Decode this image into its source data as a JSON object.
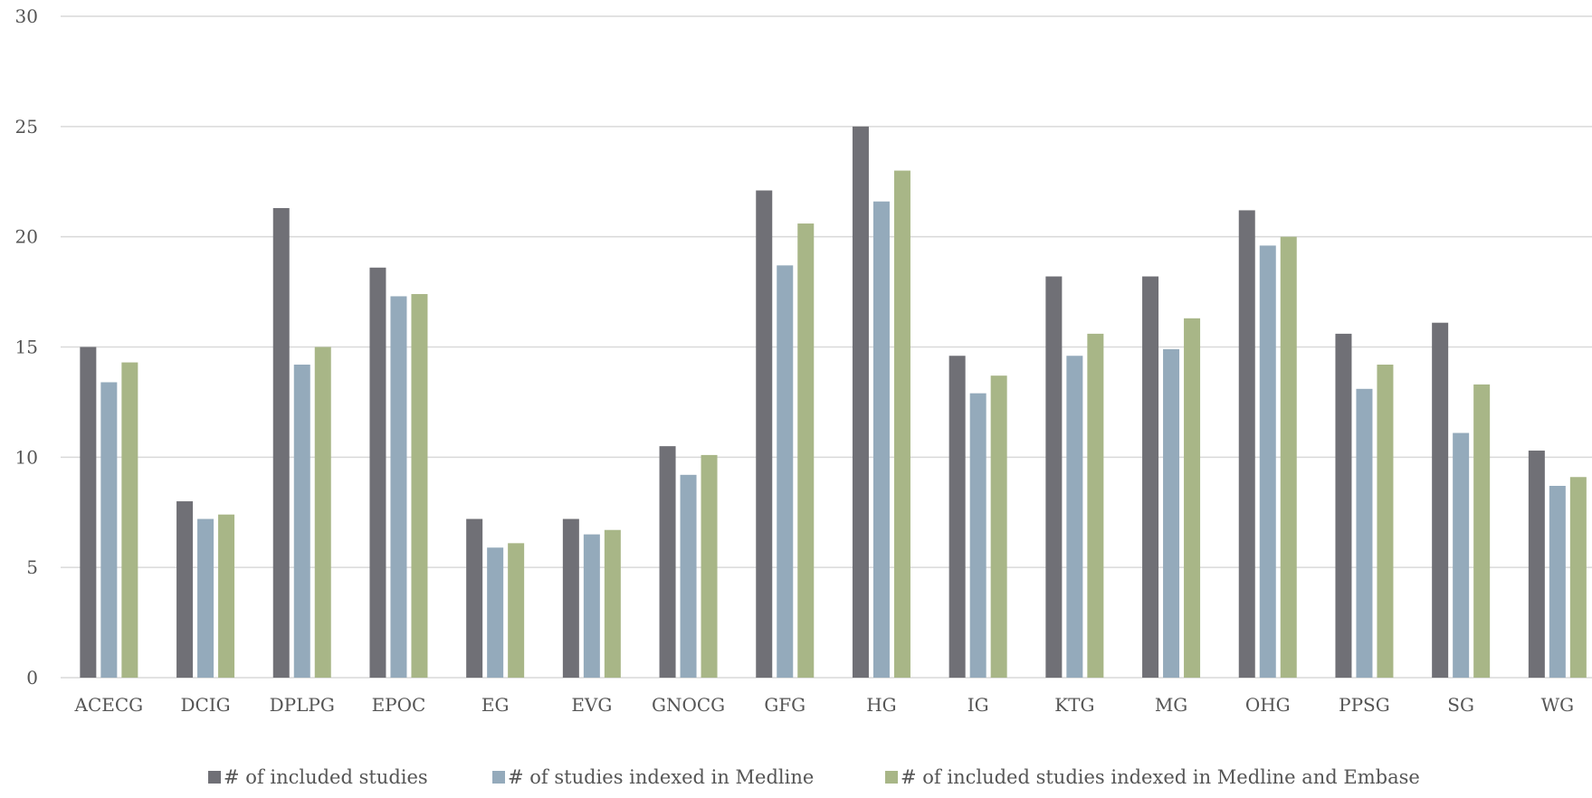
{
  "chart_data": {
    "type": "bar",
    "categories": [
      "ACECG",
      "DCIG",
      "DPLPG",
      "EPOC",
      "EG",
      "EVG",
      "GNOCG",
      "GFG",
      "HG",
      "IG",
      "KTG",
      "MG",
      "OHG",
      "PPSG",
      "SG",
      "WG"
    ],
    "series": [
      {
        "name": "# of included studies",
        "color": "#707076",
        "values": [
          15.0,
          8.0,
          21.3,
          18.6,
          7.2,
          7.2,
          10.5,
          22.1,
          25.0,
          14.6,
          18.2,
          18.2,
          21.2,
          15.6,
          16.1,
          10.3
        ]
      },
      {
        "name": "# of studies indexed in Medline",
        "color": "#94aabb",
        "values": [
          13.4,
          7.2,
          14.2,
          17.3,
          5.9,
          6.5,
          9.2,
          18.7,
          21.6,
          12.9,
          14.6,
          14.9,
          19.6,
          13.1,
          11.1,
          8.7
        ]
      },
      {
        "name": "# of included studies indexed in Medline and Embase",
        "color": "#a8b687",
        "values": [
          14.3,
          7.4,
          15.0,
          17.4,
          6.1,
          6.7,
          10.1,
          20.6,
          23.0,
          13.7,
          15.6,
          16.3,
          20.0,
          14.2,
          13.3,
          9.1
        ]
      }
    ],
    "ylim": [
      0,
      30
    ],
    "yticks": [
      "0",
      "5",
      "10",
      "15",
      "20",
      "25",
      "30"
    ],
    "title": "",
    "xlabel": "",
    "ylabel": "",
    "grid": true,
    "legend_position": "bottom-center"
  }
}
